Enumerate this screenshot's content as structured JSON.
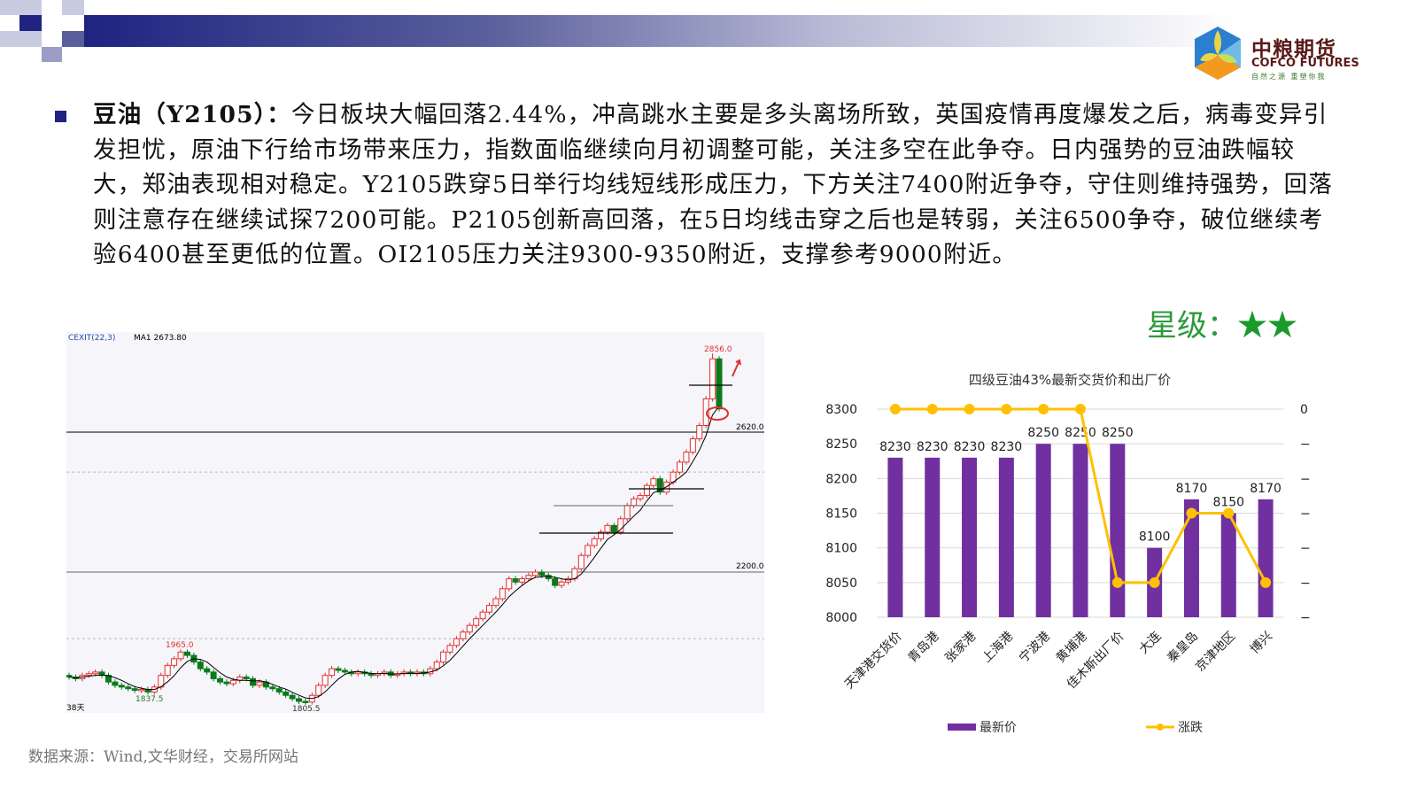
{
  "header": {
    "logo_cn": "中粮期货",
    "logo_en": "COFCO FUTURES",
    "logo_tagline": "自然之源 重塑你我",
    "brand_color": "#1e2480"
  },
  "commentary": {
    "lead": "豆油（Y2105）：",
    "body": "今日板块大幅回落2.44%，冲高跳水主要是多头离场所致，英国疫情再度爆发之后，病毒变异引发担忧，原油下行给市场带来压力，指数面临继续向月初调整可能，关注多空在此争夺。日内强势的豆油跌幅较大，郑油表现相对稳定。Y2105跌穿5日举行均线短线形成压力，下方关注7400附近争夺，守住则维持强势，回落则注意存在继续试探7200可能。P2105创新高回落，在5日均线击穿之后也是转弱，关注6500争夺，破位继续考验6400甚至更低的位置。OI2105压力关注9300-9350附近，支撑参考9000附近。"
  },
  "rating": {
    "label": "星级：",
    "stars": "★★",
    "star_count": 2
  },
  "source": "数据来源：Wind,文华财经，交易所网站",
  "chart_data": [
    {
      "type": "candlestick",
      "indicator_label": "CEXIT(22,3)",
      "ma_label": "MA1 2673.80",
      "period_label": "38天",
      "annotations": {
        "high": "2856.0",
        "peak": "1965.0",
        "low1": "1837.5",
        "low2": "1805.5",
        "level_high": "2620.0",
        "level_low": "2200.0"
      },
      "levels": [
        2620,
        2200
      ],
      "ylim": [
        1790,
        2880
      ],
      "closes": [
        1885,
        1880,
        1890,
        1895,
        1900,
        1890,
        1870,
        1860,
        1855,
        1850,
        1845,
        1848,
        1840,
        1855,
        1890,
        1920,
        1940,
        1960,
        1950,
        1930,
        1910,
        1900,
        1880,
        1870,
        1865,
        1875,
        1885,
        1880,
        1860,
        1870,
        1855,
        1850,
        1840,
        1830,
        1820,
        1812,
        1810,
        1830,
        1860,
        1890,
        1910,
        1905,
        1900,
        1895,
        1900,
        1895,
        1890,
        1895,
        1900,
        1890,
        1895,
        1900,
        1895,
        1900,
        1895,
        1910,
        1930,
        1960,
        1980,
        2000,
        2020,
        2040,
        2060,
        2080,
        2100,
        2120,
        2150,
        2180,
        2170,
        2180,
        2190,
        2200,
        2190,
        2180,
        2160,
        2170,
        2180,
        2210,
        2250,
        2280,
        2300,
        2320,
        2340,
        2320,
        2360,
        2400,
        2420,
        2430,
        2460,
        2480,
        2440,
        2470,
        2500,
        2530,
        2560,
        2600,
        2640,
        2720,
        2840,
        2690
      ],
      "colors": {
        "up": "#e03030",
        "down": "#0a7a1a"
      }
    },
    {
      "type": "bar+line",
      "title": "四级豆油43%最新交货价和出厂价",
      "categories": [
        "天津港交货价",
        "青岛港",
        "张家港",
        "上海港",
        "宁波港",
        "黄埔港",
        "佳木斯出厂价",
        "大连",
        "秦皇岛",
        "京津地区",
        "博兴"
      ],
      "series": [
        {
          "name": "最新价",
          "type": "bar",
          "axis": "left",
          "values": [
            8230,
            8230,
            8230,
            8230,
            8250,
            8250,
            8250,
            8100,
            8170,
            8150,
            8170
          ],
          "color": "#7030a0"
        },
        {
          "name": "涨跌",
          "type": "line",
          "axis": "right",
          "values": [
            0,
            0,
            0,
            0,
            0,
            0,
            -50,
            -50,
            -30,
            -30,
            -50
          ],
          "color": "#ffc000"
        }
      ],
      "ylim_left": [
        8000,
        8300
      ],
      "yticks_left": [
        8000,
        8050,
        8100,
        8150,
        8200,
        8250,
        8300
      ],
      "ylim_right": [
        -60,
        0
      ],
      "yticks_right": [
        0,
        -10,
        -20,
        -30,
        -40,
        -50,
        -60
      ],
      "legend": "bottom",
      "grid": true
    }
  ]
}
